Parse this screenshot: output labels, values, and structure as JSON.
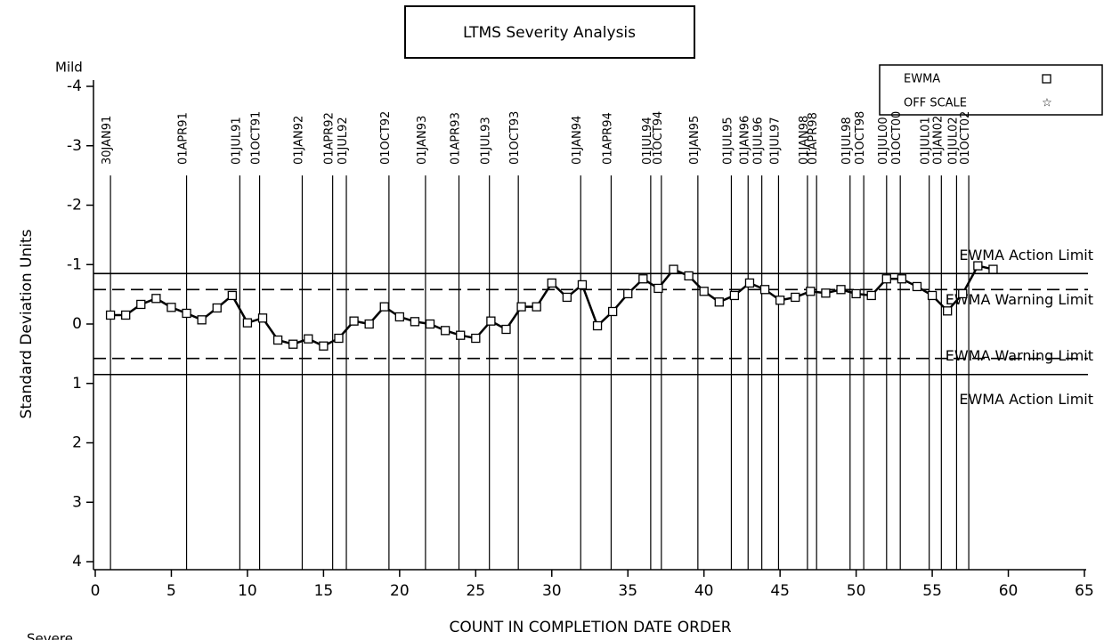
{
  "chart_data": {
    "type": "line",
    "title": "LTMS Severity Analysis",
    "x_label": "COUNT IN COMPLETION DATE ORDER",
    "y_label": "Standard Deviation Units",
    "y_top_label": "Mild",
    "y_bottom_label": "Severe",
    "xlim": [
      0,
      65
    ],
    "xticks": [
      0,
      5,
      10,
      15,
      20,
      25,
      30,
      35,
      40,
      45,
      50,
      55,
      60,
      65
    ],
    "ylim": [
      4,
      -4
    ],
    "yticks": [
      -4,
      -3,
      -2,
      -1,
      0,
      1,
      2,
      3,
      4
    ],
    "y_inverted": true,
    "series": [
      {
        "name": "EWMA",
        "color": "#000000",
        "marker": "square",
        "x": [
          1,
          2,
          3,
          4,
          5,
          6,
          7,
          8,
          9,
          10,
          11,
          12,
          13,
          14,
          15,
          16,
          17,
          18,
          19,
          20,
          21,
          22,
          23,
          24,
          25,
          26,
          27,
          28,
          29,
          30,
          31,
          32,
          33,
          34,
          35,
          36,
          37,
          38,
          39,
          40,
          41,
          42,
          43,
          44,
          45,
          46,
          47,
          48,
          49,
          50,
          51,
          52,
          53,
          54,
          55,
          56,
          57,
          58,
          59
        ],
        "values": [
          -0.15,
          -0.15,
          -0.33,
          -0.43,
          -0.28,
          -0.18,
          -0.07,
          -0.27,
          -0.48,
          -0.02,
          -0.1,
          0.27,
          0.34,
          0.25,
          0.37,
          0.24,
          -0.05,
          0,
          -0.29,
          -0.12,
          -0.04,
          0,
          0.11,
          0.19,
          0.24,
          -0.05,
          0.09,
          -0.29,
          -0.29,
          -0.69,
          -0.45,
          -0.66,
          0.03,
          -0.21,
          -0.51,
          -0.76,
          -0.6,
          -0.92,
          -0.81,
          -0.55,
          -0.37,
          -0.48,
          -0.69,
          -0.58,
          -0.4,
          -0.45,
          -0.55,
          -0.52,
          -0.58,
          -0.51,
          -0.48,
          -0.76,
          -0.76,
          -0.63,
          -0.48,
          -0.22,
          -0.51,
          -0.98,
          -0.92
        ]
      },
      {
        "name": "OFF SCALE",
        "marker": "star",
        "x": [],
        "values": []
      }
    ],
    "limits": [
      {
        "label": "EWMA Action Limit",
        "value": -0.85,
        "style": "solid"
      },
      {
        "label": "EWMA Warning Limit",
        "value": -0.58,
        "style": "dashed"
      },
      {
        "label": "EWMA Warning Limit",
        "value": 0.58,
        "style": "dashed"
      },
      {
        "label": "EWMA Action Limit",
        "value": 0.85,
        "style": "solid"
      }
    ],
    "date_markers": {
      "labels": [
        "30JAN91",
        "01APR91",
        "01JUL91",
        "01OCT91",
        "01JAN92",
        "01APR92",
        "01JUL92",
        "01OCT92",
        "01JAN93",
        "01APR93",
        "01JUL93",
        "01OCT93",
        "01JAN94",
        "01APR94",
        "01JUL94",
        "01OCT94",
        "01JAN95",
        "01JUL95",
        "01JAN96",
        "01JUL96",
        "01JUL97",
        "01JAN98",
        "01APR98",
        "01JUL98",
        "01OCT98",
        "01JUL00",
        "01OCT00",
        "01JUL01",
        "01JAN02",
        "01JUL02",
        "01OCT02"
      ],
      "x": [
        1,
        6,
        9.5,
        10.8,
        13.6,
        15.6,
        16.5,
        19.3,
        21.7,
        23.9,
        25.9,
        27.8,
        31.9,
        33.9,
        36.5,
        37.2,
        39.6,
        41.8,
        42.9,
        43.8,
        44.9,
        46.8,
        47.4,
        49.6,
        50.5,
        52,
        52.9,
        54.8,
        55.6,
        56.6,
        57.4
      ],
      "line_from": -2.5
    }
  }
}
